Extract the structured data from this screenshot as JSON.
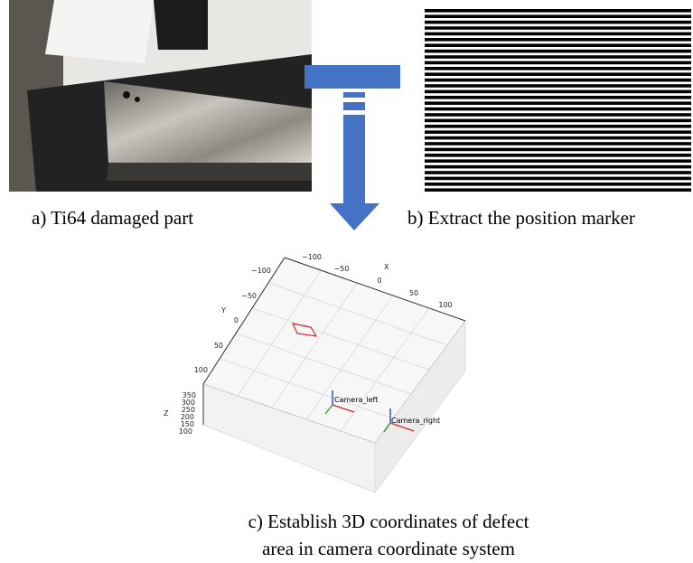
{
  "panels": [
    {
      "caption": "a) Ti64 damaged part"
    },
    {
      "caption": "b) Extract the position marker"
    },
    {
      "caption_lines": [
        "c) Establish 3D coordinates of defect",
        "area in camera coordinate system"
      ],
      "plot": {
        "x_label": "X",
        "x_ticks": [
          "−100",
          "−50",
          "0",
          "50",
          "100"
        ],
        "y_label": "Y",
        "y_ticks": [
          "−100",
          "−50",
          "0",
          "50",
          "100"
        ],
        "z_label": "Z",
        "z_ticks": [
          "350",
          "300",
          "250",
          "200",
          "150",
          "100"
        ],
        "cameras": [
          "Camera_left",
          "Camera_right"
        ]
      }
    }
  ]
}
